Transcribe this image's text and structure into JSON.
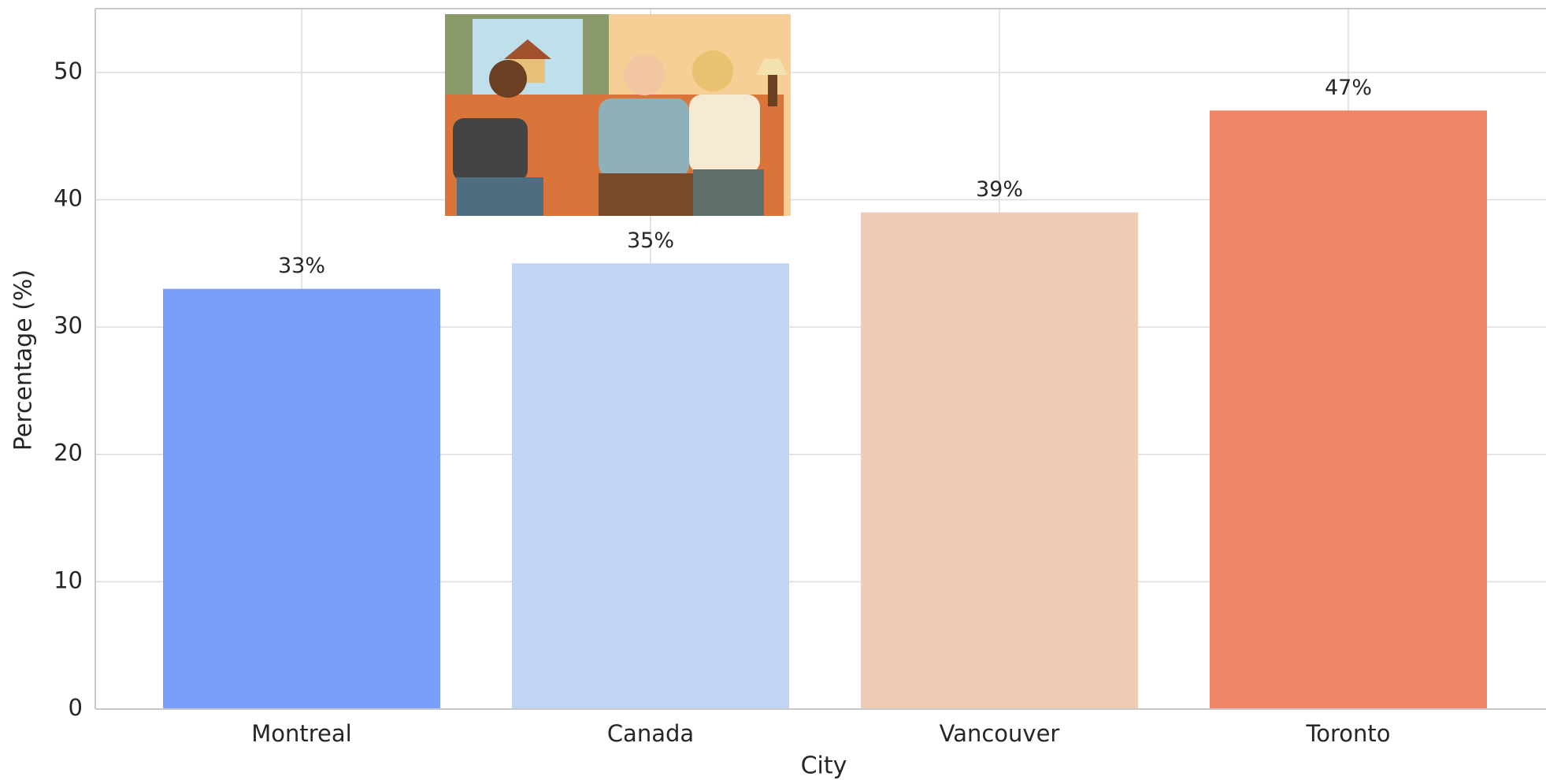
{
  "chart_data": {
    "type": "bar",
    "x_label": "City",
    "y_label": "Percentage (%)",
    "categories": [
      "Montreal",
      "Canada",
      "Vancouver",
      "Toronto"
    ],
    "values": [
      33,
      35,
      39,
      47
    ],
    "value_labels": [
      "33%",
      "35%",
      "39%",
      "47%"
    ],
    "colors": [
      "#7b9ef8",
      "#c0d4f5",
      "#f0cbb5",
      "#ee8468"
    ],
    "ylim": [
      0,
      55
    ],
    "yticks": [
      0,
      10,
      20,
      30,
      40,
      50
    ],
    "grid": true
  }
}
